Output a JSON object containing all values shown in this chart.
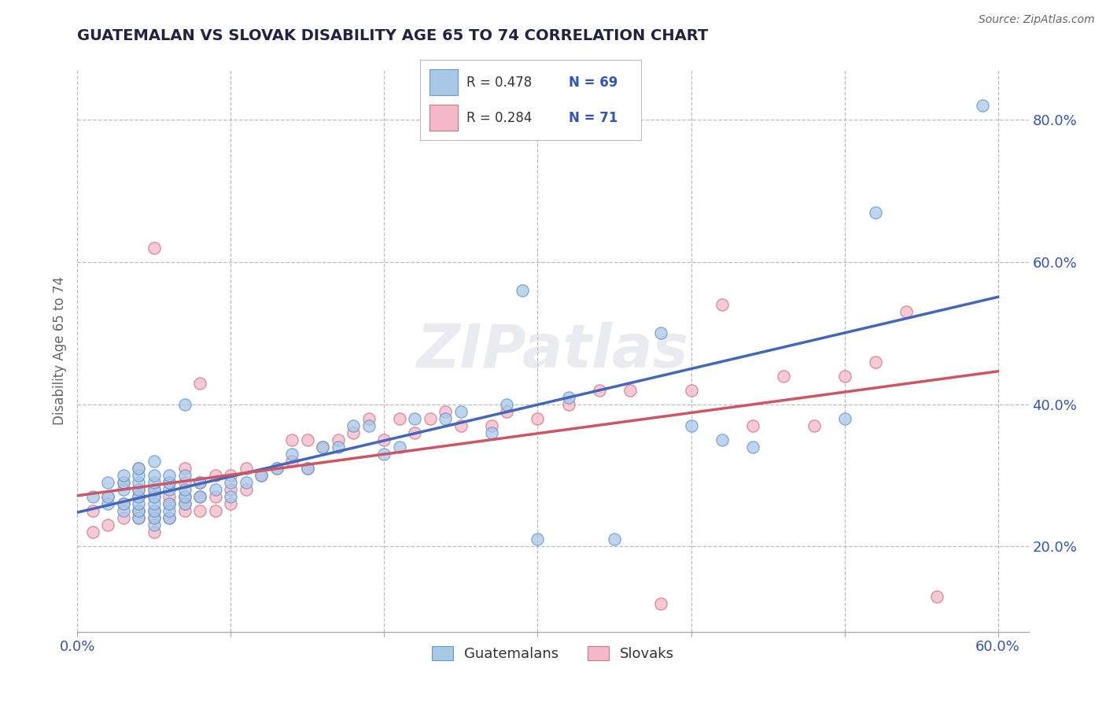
{
  "title": "GUATEMALAN VS SLOVAK DISABILITY AGE 65 TO 74 CORRELATION CHART",
  "source_text": "Source: ZipAtlas.com",
  "ylabel": "Disability Age 65 to 74",
  "xlim": [
    0.0,
    0.62
  ],
  "ylim": [
    0.08,
    0.87
  ],
  "xticks": [
    0.0,
    0.1,
    0.2,
    0.3,
    0.4,
    0.5,
    0.6
  ],
  "xticklabels": [
    "0.0%",
    "",
    "",
    "",
    "",
    "",
    "60.0%"
  ],
  "yticks_right": [
    0.2,
    0.4,
    0.6,
    0.8
  ],
  "yticklabels_right": [
    "20.0%",
    "40.0%",
    "60.0%",
    "80.0%"
  ],
  "blue_R": 0.478,
  "blue_N": 69,
  "pink_R": 0.284,
  "pink_N": 71,
  "blue_color": "#a8c8e8",
  "blue_edge_color": "#6699cc",
  "pink_color": "#f4b8c8",
  "pink_edge_color": "#cc7788",
  "blue_line_color": "#4466bb",
  "pink_line_color": "#cc5566",
  "background_color": "#ffffff",
  "grid_color": "#bbbbcc",
  "title_color": "#222244",
  "legend_text_color": "#333333",
  "legend_num_color": "#3355bb",
  "watermark": "ZIPatlas",
  "figsize": [
    14.06,
    8.92
  ],
  "dpi": 100,
  "blue_scatter_x": [
    0.01,
    0.02,
    0.02,
    0.02,
    0.03,
    0.03,
    0.03,
    0.03,
    0.03,
    0.04,
    0.04,
    0.04,
    0.04,
    0.04,
    0.04,
    0.04,
    0.04,
    0.05,
    0.05,
    0.05,
    0.05,
    0.05,
    0.05,
    0.05,
    0.05,
    0.05,
    0.06,
    0.06,
    0.06,
    0.06,
    0.06,
    0.06,
    0.07,
    0.07,
    0.07,
    0.07,
    0.07,
    0.08,
    0.08,
    0.09,
    0.1,
    0.1,
    0.11,
    0.12,
    0.13,
    0.14,
    0.15,
    0.16,
    0.17,
    0.18,
    0.19,
    0.2,
    0.21,
    0.22,
    0.24,
    0.25,
    0.27,
    0.28,
    0.29,
    0.3,
    0.32,
    0.35,
    0.38,
    0.4,
    0.42,
    0.44,
    0.5,
    0.52,
    0.59
  ],
  "blue_scatter_y": [
    0.27,
    0.26,
    0.27,
    0.29,
    0.25,
    0.26,
    0.28,
    0.29,
    0.3,
    0.24,
    0.25,
    0.26,
    0.27,
    0.28,
    0.29,
    0.3,
    0.31,
    0.23,
    0.24,
    0.25,
    0.26,
    0.27,
    0.28,
    0.29,
    0.3,
    0.32,
    0.24,
    0.25,
    0.26,
    0.28,
    0.29,
    0.3,
    0.26,
    0.27,
    0.28,
    0.3,
    0.4,
    0.27,
    0.29,
    0.28,
    0.27,
    0.29,
    0.29,
    0.3,
    0.31,
    0.33,
    0.31,
    0.34,
    0.34,
    0.37,
    0.37,
    0.33,
    0.34,
    0.38,
    0.38,
    0.39,
    0.36,
    0.4,
    0.56,
    0.21,
    0.41,
    0.21,
    0.5,
    0.37,
    0.35,
    0.34,
    0.38,
    0.67,
    0.82
  ],
  "pink_scatter_x": [
    0.01,
    0.01,
    0.02,
    0.02,
    0.03,
    0.03,
    0.03,
    0.04,
    0.04,
    0.04,
    0.04,
    0.04,
    0.05,
    0.05,
    0.05,
    0.05,
    0.05,
    0.05,
    0.06,
    0.06,
    0.06,
    0.06,
    0.07,
    0.07,
    0.07,
    0.07,
    0.07,
    0.08,
    0.08,
    0.08,
    0.08,
    0.09,
    0.09,
    0.09,
    0.1,
    0.1,
    0.1,
    0.11,
    0.11,
    0.12,
    0.13,
    0.14,
    0.14,
    0.15,
    0.15,
    0.16,
    0.17,
    0.18,
    0.19,
    0.2,
    0.21,
    0.22,
    0.23,
    0.24,
    0.25,
    0.27,
    0.28,
    0.3,
    0.32,
    0.34,
    0.36,
    0.38,
    0.4,
    0.42,
    0.44,
    0.46,
    0.48,
    0.5,
    0.52,
    0.54,
    0.56
  ],
  "pink_scatter_y": [
    0.22,
    0.25,
    0.23,
    0.27,
    0.24,
    0.26,
    0.29,
    0.24,
    0.25,
    0.27,
    0.28,
    0.31,
    0.22,
    0.24,
    0.25,
    0.27,
    0.28,
    0.62,
    0.24,
    0.26,
    0.27,
    0.29,
    0.25,
    0.26,
    0.27,
    0.29,
    0.31,
    0.25,
    0.27,
    0.29,
    0.43,
    0.25,
    0.27,
    0.3,
    0.26,
    0.28,
    0.3,
    0.28,
    0.31,
    0.3,
    0.31,
    0.32,
    0.35,
    0.31,
    0.35,
    0.34,
    0.35,
    0.36,
    0.38,
    0.35,
    0.38,
    0.36,
    0.38,
    0.39,
    0.37,
    0.37,
    0.39,
    0.38,
    0.4,
    0.42,
    0.42,
    0.12,
    0.42,
    0.54,
    0.37,
    0.44,
    0.37,
    0.44,
    0.46,
    0.53,
    0.13
  ]
}
